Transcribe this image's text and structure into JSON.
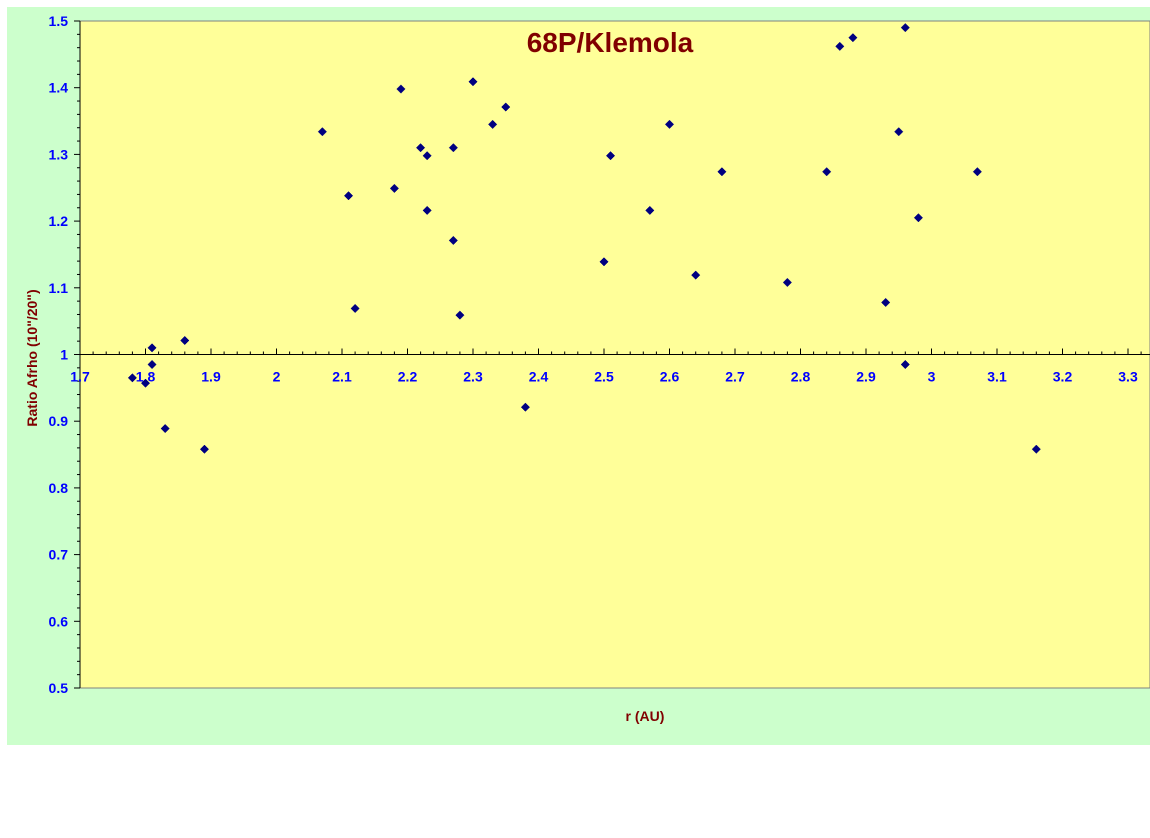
{
  "chart_data": {
    "type": "scatter",
    "title": "68P/Klemola",
    "xlabel": "r (AU)",
    "ylabel": "Ratio Afrho (10\"/20\")",
    "xlim": [
      1.7,
      3.35
    ],
    "ylim": [
      0.5,
      1.5
    ],
    "x_ticks": [
      1.7,
      1.8,
      1.9,
      2,
      2.1,
      2.2,
      2.3,
      2.4,
      2.5,
      2.6,
      2.7,
      2.8,
      2.9,
      3,
      3.1,
      3.2,
      3.3
    ],
    "x_tick_labels": [
      "1.7",
      "1.8",
      "1.9",
      "2",
      "2.1",
      "2.2",
      "2.3",
      "2.4",
      "2.5",
      "2.6",
      "2.7",
      "2.8",
      "2.9",
      "3",
      "3.1",
      "3.2",
      "3.3"
    ],
    "y_ticks": [
      0.5,
      0.6,
      0.7,
      0.8,
      0.9,
      1,
      1.1,
      1.2,
      1.3,
      1.4,
      1.5
    ],
    "y_tick_labels": [
      "0.5",
      "0.6",
      "0.7",
      "0.8",
      "0.9",
      "1",
      "1.1",
      "1.2",
      "1.3",
      "1.4",
      "1.5"
    ],
    "x_axis_crosses_at": 1,
    "grid": false,
    "legend": "none",
    "colors": {
      "outer_background": "#ccffcc",
      "plot_background": "#ffff99",
      "marker": "#000080",
      "tick_labels": "#0000ff",
      "titles": "#800000"
    },
    "points": [
      {
        "x": 1.78,
        "y": 0.965
      },
      {
        "x": 1.8,
        "y": 0.957
      },
      {
        "x": 1.81,
        "y": 1.01
      },
      {
        "x": 1.81,
        "y": 0.985
      },
      {
        "x": 1.83,
        "y": 0.889
      },
      {
        "x": 1.86,
        "y": 1.021
      },
      {
        "x": 1.89,
        "y": 0.858
      },
      {
        "x": 2.07,
        "y": 1.334
      },
      {
        "x": 2.11,
        "y": 1.238
      },
      {
        "x": 2.12,
        "y": 1.069
      },
      {
        "x": 2.18,
        "y": 1.249
      },
      {
        "x": 2.19,
        "y": 1.398
      },
      {
        "x": 2.22,
        "y": 1.31
      },
      {
        "x": 2.23,
        "y": 1.298
      },
      {
        "x": 2.23,
        "y": 1.216
      },
      {
        "x": 2.27,
        "y": 1.31
      },
      {
        "x": 2.27,
        "y": 1.171
      },
      {
        "x": 2.28,
        "y": 1.059
      },
      {
        "x": 2.3,
        "y": 1.409
      },
      {
        "x": 2.33,
        "y": 1.345
      },
      {
        "x": 2.35,
        "y": 1.371
      },
      {
        "x": 2.38,
        "y": 0.921
      },
      {
        "x": 2.5,
        "y": 1.139
      },
      {
        "x": 2.51,
        "y": 1.298
      },
      {
        "x": 2.57,
        "y": 1.216
      },
      {
        "x": 2.6,
        "y": 1.345
      },
      {
        "x": 2.64,
        "y": 1.119
      },
      {
        "x": 2.68,
        "y": 1.274
      },
      {
        "x": 2.78,
        "y": 1.108
      },
      {
        "x": 2.84,
        "y": 1.274
      },
      {
        "x": 2.86,
        "y": 1.462
      },
      {
        "x": 2.88,
        "y": 1.475
      },
      {
        "x": 2.93,
        "y": 1.078
      },
      {
        "x": 2.95,
        "y": 1.334
      },
      {
        "x": 2.96,
        "y": 1.49
      },
      {
        "x": 2.96,
        "y": 0.985
      },
      {
        "x": 2.98,
        "y": 1.205
      },
      {
        "x": 3.07,
        "y": 1.274
      },
      {
        "x": 3.16,
        "y": 0.858
      }
    ]
  }
}
